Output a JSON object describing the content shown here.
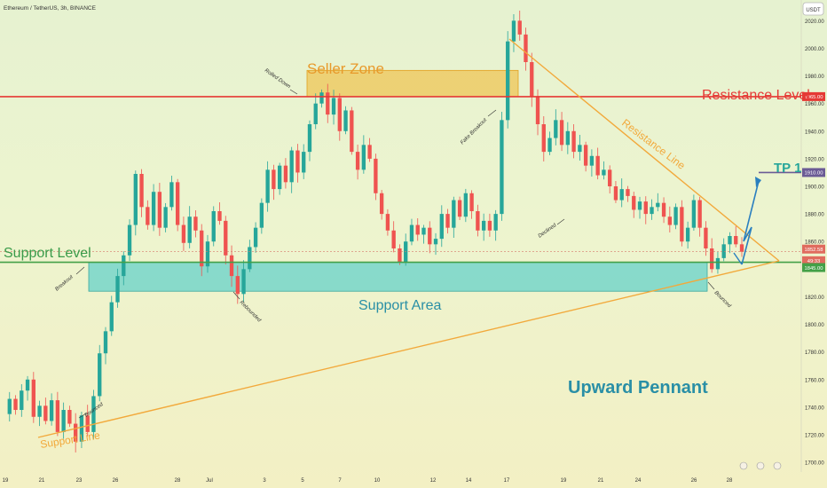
{
  "header": {
    "symbol": "Ethereum / TetherUS, 3h, BINANCE",
    "currency_badge": "USDT"
  },
  "colors": {
    "up": "#26a69a",
    "down": "#ef5350",
    "resistance": "#e53935",
    "support": "#43a047",
    "triangle": "#f2a93b",
    "seller_zone": "#f0b429",
    "support_area": "#66d1c9",
    "tp": "#6b5b95",
    "arrow": "#2a7fbf"
  },
  "chart_data": {
    "type": "candlestick",
    "symbol": "Ethereum / TetherUS",
    "timeframe": "3h",
    "exchange": "BINANCE",
    "y_ticks": [
      2020,
      2000,
      1980,
      1960,
      1940,
      1920,
      1900,
      1880,
      1860,
      1840,
      1820,
      1800,
      1780,
      1760,
      1740,
      1720,
      1700
    ],
    "ylim": [
      1693,
      2035
    ],
    "x_ticks": [
      "19",
      "21",
      "23",
      "26",
      "28",
      "Jul",
      "3",
      "5",
      "7",
      "10",
      "12",
      "14",
      "17",
      "19",
      "21",
      "24",
      "26",
      "28"
    ],
    "price_tags": [
      {
        "label": "1965.00",
        "value": 1965
      },
      {
        "label": "1910.00",
        "value": 1910
      },
      {
        "label": "1852.58",
        "value": 1852.6
      },
      {
        "label": "49:33",
        "value": 1849.3
      },
      {
        "label": "1845.00",
        "value": 1845
      }
    ],
    "resistance_level": 1965,
    "support_level": 1845,
    "tp_level": 1910,
    "seller_zone": [
      1965,
      1984
    ],
    "support_area": [
      1824,
      1845
    ],
    "price_path": [
      1735,
      1746,
      1738,
      1752,
      1760,
      1733,
      1741,
      1730,
      1745,
      1722,
      1738,
      1728,
      1715,
      1734,
      1722,
      1748,
      1779,
      1795,
      1816,
      1835,
      1850,
      1872,
      1909,
      1885,
      1872,
      1896,
      1870,
      1885,
      1903,
      1872,
      1859,
      1878,
      1868,
      1842,
      1860,
      1882,
      1875,
      1850,
      1835,
      1822,
      1840,
      1856,
      1870,
      1888,
      1912,
      1898,
      1915,
      1903,
      1926,
      1910,
      1925,
      1945,
      1960,
      1968,
      1952,
      1964,
      1940,
      1955,
      1925,
      1912,
      1930,
      1920,
      1895,
      1880,
      1868,
      1855,
      1845,
      1860,
      1872,
      1865,
      1870,
      1858,
      1862,
      1880,
      1870,
      1890,
      1878,
      1895,
      1882,
      1868,
      1875,
      1868,
      1880,
      1948,
      2005,
      2020,
      2010,
      1990,
      1965,
      1945,
      1925,
      1935,
      1948,
      1930,
      1940,
      1925,
      1930,
      1915,
      1922,
      1908,
      1912,
      1900,
      1890,
      1898,
      1893,
      1883,
      1889,
      1880,
      1885,
      1888,
      1878,
      1872,
      1885,
      1860,
      1870,
      1890,
      1870,
      1855,
      1840,
      1848,
      1858,
      1864,
      1858,
      1852.6
    ]
  },
  "annotations": {
    "seller_zone": "Seller Zone",
    "resistance_level": "Resistance Level",
    "resistance_line": "Resistance Line",
    "support_level": "Support Level",
    "support_area": "Support Area",
    "support_line": "Support Line",
    "pattern": "Upward Pennant",
    "tp": "TP 1",
    "rolled_down": "Rolled Down",
    "fake_breakout": "Fake Breakout",
    "declined": "Declined",
    "breakout": "Breakout",
    "rebounded": "Rebounded",
    "bounced_left": "Bounced",
    "bounced_right": "Bounced"
  }
}
